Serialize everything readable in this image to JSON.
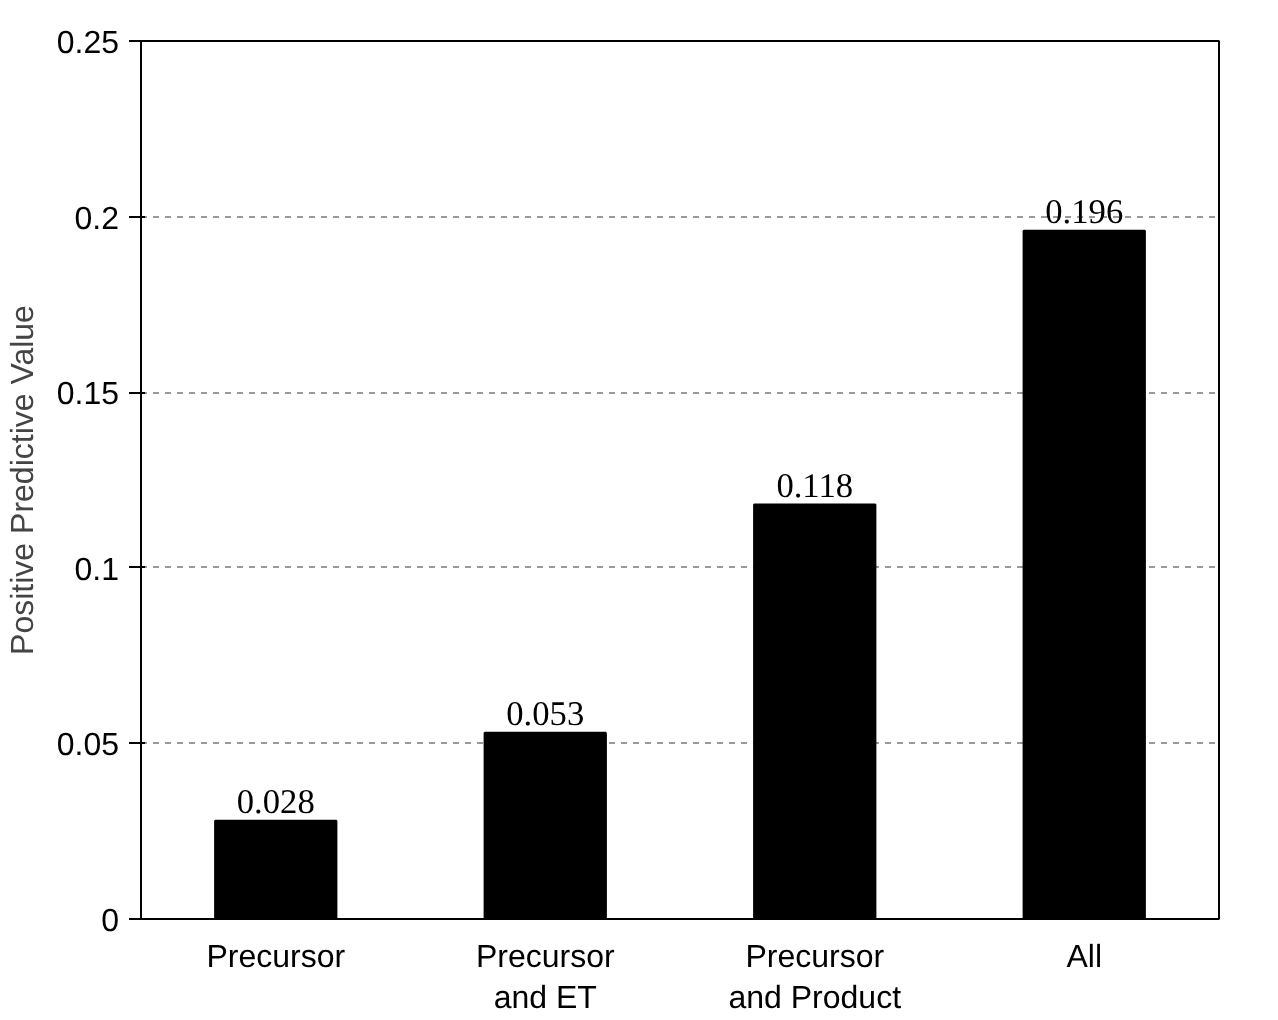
{
  "chart_data": {
    "type": "bar",
    "ylabel": "Positive Predictive Value",
    "categories": [
      "Precursor",
      "Precursor\nand ET",
      "Precursor\nand Product",
      "All"
    ],
    "values": [
      0.028,
      0.053,
      0.118,
      0.196
    ],
    "color": "#000000",
    "ylim": [
      0,
      0.25
    ],
    "yticks": [
      0,
      0.05,
      0.1,
      0.15,
      0.2,
      0.25
    ],
    "grid": "y",
    "data_labels": true
  }
}
